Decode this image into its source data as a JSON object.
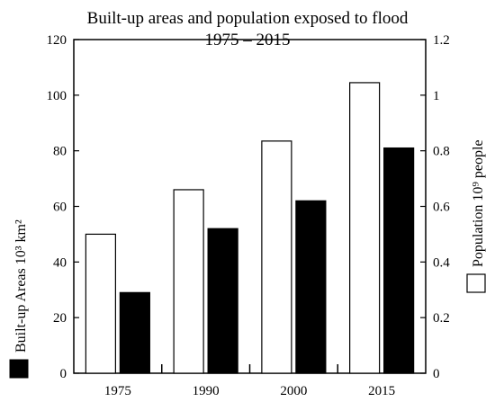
{
  "chart_data": {
    "type": "bar",
    "title": "Built-up areas and population exposed to flood",
    "subtitle": "1975 – 2015",
    "categories": [
      "1975",
      "1990",
      "2000",
      "2015"
    ],
    "series": [
      {
        "name": "Population 10⁹ people",
        "axis": "right",
        "values": [
          0.5,
          0.66,
          0.835,
          1.045
        ],
        "color": "#ffffff"
      },
      {
        "name": "Built-up Areas 10³ km²",
        "axis": "left",
        "values": [
          29,
          52,
          62,
          81
        ],
        "color": "#000000"
      }
    ],
    "ylabel_left": "Built-up Areas 10³ km²",
    "ylabel_right": "Population 10⁹ people",
    "ylim_left": [
      0,
      120
    ],
    "ylim_right": [
      0,
      1.2
    ],
    "yticks_left": [
      "0",
      "20",
      "40",
      "60",
      "80",
      "100",
      "120"
    ],
    "yticks_right": [
      "0",
      "0.2",
      "0.4",
      "0.6",
      "0.8",
      "1",
      "1.2"
    ],
    "grid": false
  }
}
